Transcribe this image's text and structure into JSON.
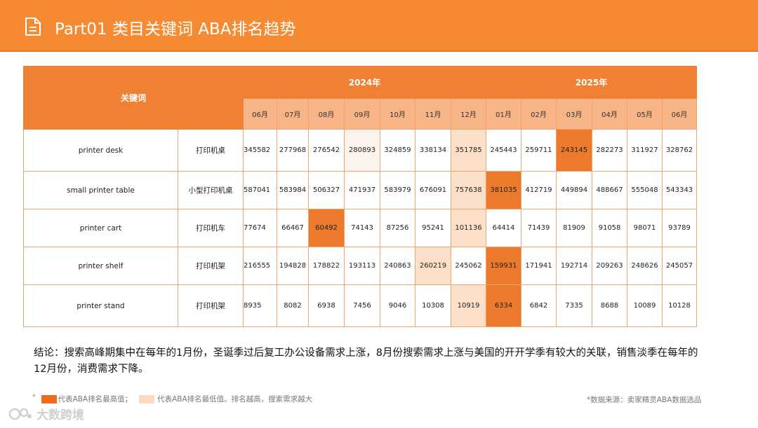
{
  "header": {
    "title": "Part01 类目关键词 ABA排名趋势",
    "icon": "document-icon",
    "color": "#f58a33"
  },
  "table": {
    "keyword_header": "关键词",
    "years": [
      {
        "label": "2024年",
        "span": 7
      },
      {
        "label": "2025年",
        "span": 6
      }
    ],
    "months": [
      "06月",
      "07月",
      "08月",
      "09月",
      "10月",
      "11月",
      "12月",
      "01月",
      "02月",
      "03月",
      "04月",
      "05月",
      "06月"
    ],
    "rows": [
      {
        "en": "printer desk",
        "cn": "打印机桌",
        "values": [
          "345582",
          "277968",
          "276542",
          "280893",
          "324859",
          "338134",
          "351785",
          "245443",
          "259711",
          "243145",
          "282273",
          "311927",
          "328762"
        ],
        "highlight": [
          "",
          "",
          "",
          "faint",
          "",
          "",
          "min",
          "",
          "",
          "max",
          "",
          "",
          ""
        ]
      },
      {
        "en": "small printer table",
        "cn": "小型打印机桌",
        "values": [
          "587041",
          "583984",
          "506327",
          "471937",
          "583979",
          "676091",
          "757638",
          "381035",
          "412719",
          "449894",
          "488667",
          "555048",
          "543343"
        ],
        "highlight": [
          "",
          "",
          "",
          "",
          "",
          "",
          "min",
          "max",
          "",
          "",
          "",
          "",
          ""
        ]
      },
      {
        "en": "printer cart",
        "cn": "打印机车",
        "values": [
          "77674",
          "66467",
          "60492",
          "74143",
          "87256",
          "95241",
          "101136",
          "64414",
          "71439",
          "81909",
          "91058",
          "98071",
          "93789"
        ],
        "highlight": [
          "",
          "",
          "max",
          "",
          "",
          "",
          "min",
          "",
          "",
          "",
          "",
          "",
          ""
        ]
      },
      {
        "en": "printer shelf",
        "cn": "打印机架",
        "values": [
          "216555",
          "194828",
          "178822",
          "193113",
          "240863",
          "260219",
          "245062",
          "159931",
          "171941",
          "192714",
          "209263",
          "248626",
          "245057"
        ],
        "highlight": [
          "",
          "",
          "",
          "",
          "",
          "min",
          "",
          "max",
          "",
          "",
          "",
          "",
          ""
        ]
      },
      {
        "en": "printer stand",
        "cn": "打印机架",
        "values": [
          "8935",
          "8082",
          "6938",
          "7456",
          "9046",
          "10308",
          "10919",
          "6334",
          "6842",
          "7335",
          "8688",
          "10089",
          "10128"
        ],
        "highlight": [
          "",
          "",
          "",
          "",
          "",
          "",
          "min",
          "max",
          "",
          "",
          "",
          "",
          ""
        ]
      }
    ],
    "colors": {
      "max": "#ec7a2c",
      "min": "#fde0c9",
      "faint": "#fbf3ee"
    }
  },
  "conclusion": "结论：搜索高峰期集中在每年的1月份，圣诞季过后复工办公设备需求上涨，8月份搜索需求上涨与美国的开开学季有较大的关联，销售淡季在每年的12月份，消费需求下降。",
  "legend": {
    "bullet": "*",
    "max_label": "代表ABA排名最高值；",
    "min_label": "代表ABA排名最低值。排名越高，搜索需求越大"
  },
  "source": "*数据来源：卖家精灵ABA数据选品",
  "watermark": {
    "text": "大数跨境"
  }
}
